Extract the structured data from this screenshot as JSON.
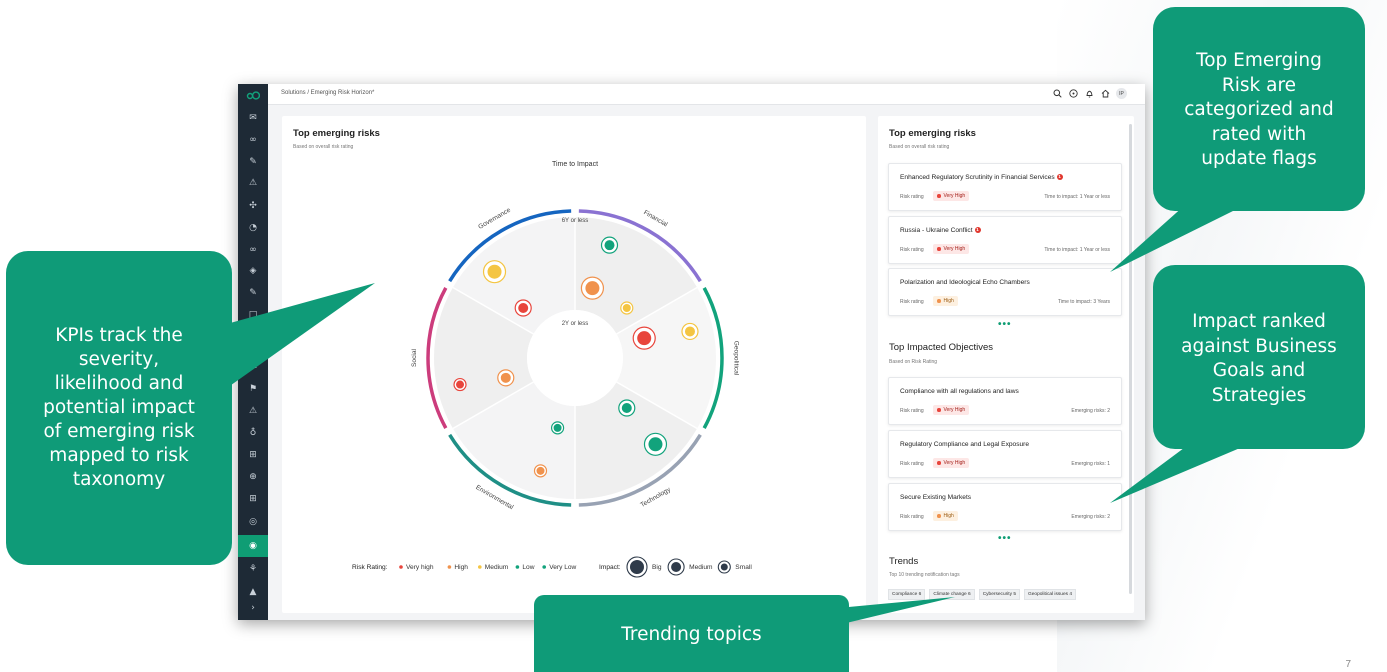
{
  "app": {
    "breadcrumb": "Solutions / Emerging Risk Horizon*",
    "avatar_initials": "IP",
    "top_icons": [
      "search-icon",
      "help-icon",
      "bell-icon",
      "home-icon"
    ],
    "nav_active_index": 19
  },
  "radar": {
    "title": "Top emerging risks",
    "subtitle": "Based on overall risk rating",
    "axis_label": "Time to Impact",
    "ring_outer_label": "6Y or less",
    "ring_inner_label": "2Y or less",
    "segments": [
      {
        "name": "Governance",
        "color": "#1565c0"
      },
      {
        "name": "Financial",
        "color": "#8a72d2"
      },
      {
        "name": "Geopolitical",
        "color": "#12a37c"
      },
      {
        "name": "Technology",
        "color": "#98a2b3"
      },
      {
        "name": "Environmental",
        "color": "#1f8f86"
      },
      {
        "name": "Social",
        "color": "#cc3c7c"
      }
    ],
    "risks": [
      {
        "rating": "Medium",
        "impact": "Big",
        "segment": "Governance",
        "horizon": "6Y or less"
      },
      {
        "rating": "Very high",
        "impact": "Medium",
        "segment": "Governance",
        "horizon": "2Y or less"
      },
      {
        "rating": "Low",
        "impact": "Medium",
        "segment": "Financial",
        "horizon": "6Y or less"
      },
      {
        "rating": "High",
        "impact": "Big",
        "segment": "Financial",
        "horizon": "2Y or less"
      },
      {
        "rating": "Medium",
        "impact": "Small",
        "segment": "Financial",
        "horizon": "2Y or less"
      },
      {
        "rating": "Medium",
        "impact": "Medium",
        "segment": "Geopolitical",
        "horizon": "6Y or less"
      },
      {
        "rating": "Very high",
        "impact": "Big",
        "segment": "Geopolitical",
        "horizon": "2Y or less"
      },
      {
        "rating": "Low",
        "impact": "Big",
        "segment": "Technology",
        "horizon": "6Y or less"
      },
      {
        "rating": "Low",
        "impact": "Medium",
        "segment": "Technology",
        "horizon": "2Y or less"
      },
      {
        "rating": "High",
        "impact": "Small",
        "segment": "Environmental",
        "horizon": "6Y or less"
      },
      {
        "rating": "Low",
        "impact": "Small",
        "segment": "Environmental",
        "horizon": "2Y or less"
      },
      {
        "rating": "High",
        "impact": "Medium",
        "segment": "Social",
        "horizon": "2Y or less"
      },
      {
        "rating": "Very high",
        "impact": "Small",
        "segment": "Social",
        "horizon": "6Y or less"
      }
    ],
    "legend": {
      "rating_label": "Risk Rating:",
      "ratings": [
        {
          "label": "Very high",
          "color": "#e8453c"
        },
        {
          "label": "High",
          "color": "#f0924d"
        },
        {
          "label": "Medium",
          "color": "#f4c542"
        },
        {
          "label": "Low",
          "color": "#12a37c"
        },
        {
          "label": "Very Low",
          "color": "#12a37c"
        }
      ],
      "impact_label": "Impact:",
      "impacts": [
        {
          "label": "Big"
        },
        {
          "label": "Medium"
        },
        {
          "label": "Small"
        }
      ]
    }
  },
  "sidebar_panel": {
    "top_risks_title": "Top emerging risks",
    "top_risks_subtitle": "Based on overall risk rating",
    "risks": [
      {
        "title": "Enhanced Regulatory Scrutinity in Financial Services",
        "flag": "1",
        "label": "Risk rating",
        "rating": "Very High",
        "meta": "Time to impact:  1 Year or less"
      },
      {
        "title": "Russia - Ukraine Conflict",
        "flag": "1",
        "label": "Risk rating",
        "rating": "Very High",
        "meta": "Time to impact:  1 Year or less"
      },
      {
        "title": "Polarization and Ideological Echo Chambers",
        "flag": "",
        "label": "Risk rating",
        "rating": "High",
        "meta": "Time to impact:  3 Years"
      }
    ],
    "more": "•••",
    "objectives_title": "Top Impacted Objectives",
    "objectives_subtitle": "Based on Risk Rating",
    "objectives": [
      {
        "title": "Compliance with all regulations and laws",
        "label": "Risk rating",
        "rating": "Very High",
        "meta": "Emerging risks:  2"
      },
      {
        "title": "Regulatory Compliance and Legal Exposure",
        "label": "Risk rating",
        "rating": "Very High",
        "meta": "Emerging risks:  1"
      },
      {
        "title": "Secure Existing Markets",
        "label": "Risk rating",
        "rating": "High",
        "meta": "Emerging risks:  2"
      }
    ],
    "trends_title": "Trends",
    "trends_subtitle": "Top 10 trending notification tags",
    "tags": [
      "Compliance  6",
      "Climate change  6",
      "Cybersecurity  5",
      "Geopolitical issues  4"
    ]
  },
  "callouts": {
    "kpi": [
      "KPIs track the",
      "severity,",
      "likelihood and",
      "potential impact",
      "of emerging risk",
      "mapped to risk",
      "taxonomy"
    ],
    "top": [
      "Top Emerging",
      "Risk are",
      "categorized and",
      "rated with",
      "update flags"
    ],
    "impact": [
      "Impact ranked",
      "against Business",
      "Goals and",
      "Strategies"
    ],
    "trend": "Trending topics"
  },
  "colors": {
    "accent": "#0f9b78",
    "very_high": "#e8453c",
    "high": "#f0924d",
    "medium": "#f4c542",
    "low": "#12a37c"
  },
  "page_number": "7"
}
